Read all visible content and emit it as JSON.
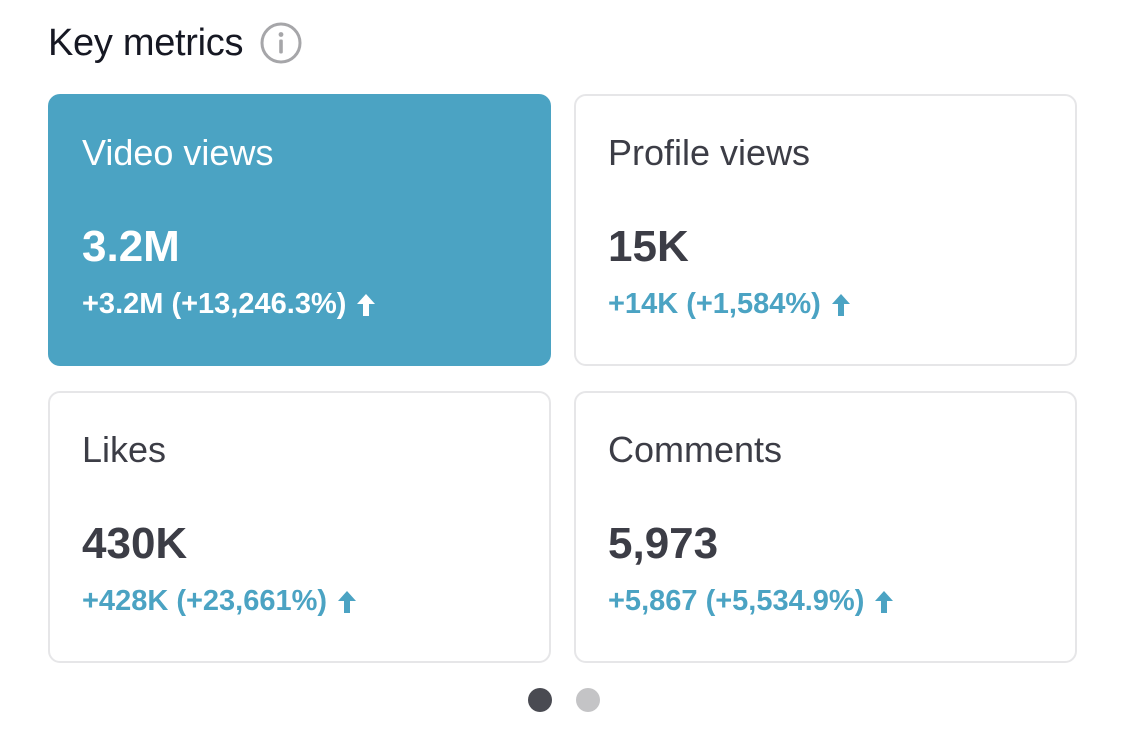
{
  "header": {
    "title": "Key metrics",
    "info_icon": "info-circle-icon"
  },
  "colors": {
    "accent": "#4ba3c3",
    "text_primary": "#161823",
    "text_value": "#3c3d46",
    "border": "#e6e6e8",
    "dot_active": "#4a4b52",
    "dot_inactive": "#c4c4c6"
  },
  "metrics": [
    {
      "label": "Video views",
      "value": "3.2M",
      "change": "+3.2M (+13,246.3%)",
      "selected": true,
      "trend_icon": "arrow-up-icon"
    },
    {
      "label": "Profile views",
      "value": "15K",
      "change": "+14K (+1,584%)",
      "selected": false,
      "trend_icon": "arrow-up-icon"
    },
    {
      "label": "Likes",
      "value": "430K",
      "change": "+428K (+23,661%)",
      "selected": false,
      "trend_icon": "arrow-up-icon"
    },
    {
      "label": "Comments",
      "value": "5,973",
      "change": "+5,867 (+5,534.9%)",
      "selected": false,
      "trend_icon": "arrow-up-icon"
    }
  ],
  "pager": {
    "total": 2,
    "active_index": 0
  }
}
